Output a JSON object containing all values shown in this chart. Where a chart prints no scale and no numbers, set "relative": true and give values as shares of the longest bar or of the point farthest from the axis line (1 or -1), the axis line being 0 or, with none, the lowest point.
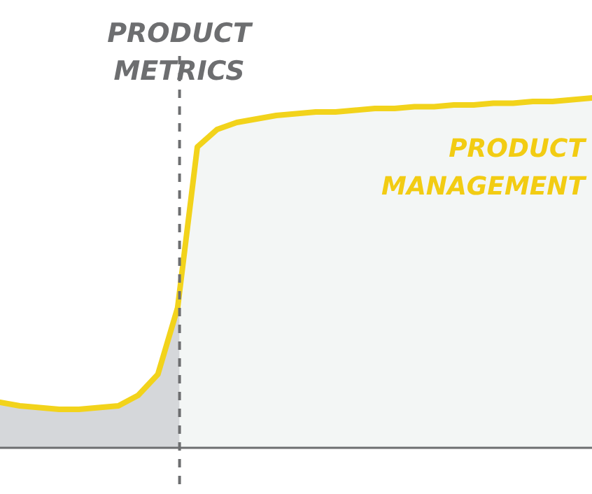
{
  "chart_data": {
    "type": "line",
    "relative": true,
    "categories": [
      null,
      null,
      null,
      null,
      null,
      null,
      null,
      null,
      null,
      null,
      null,
      null,
      null,
      null,
      null,
      null,
      null,
      null,
      null,
      null,
      null,
      null,
      null,
      null,
      null,
      null,
      null,
      null,
      null,
      null,
      null
    ],
    "series": [
      {
        "color": "#f2d31b",
        "values": [
          0.13,
          0.12,
          0.115,
          0.11,
          0.11,
          0.115,
          0.12,
          0.15,
          0.21,
          0.4,
          0.86,
          0.91,
          0.93,
          0.94,
          0.95,
          0.955,
          0.96,
          0.96,
          0.965,
          0.97,
          0.97,
          0.975,
          0.975,
          0.98,
          0.98,
          0.985,
          0.985,
          0.99,
          0.99,
          0.995,
          1.0
        ]
      }
    ],
    "annotations": [
      "PRODUCT METRICS",
      "PRODUCT MANAGEMENT"
    ]
  }
}
